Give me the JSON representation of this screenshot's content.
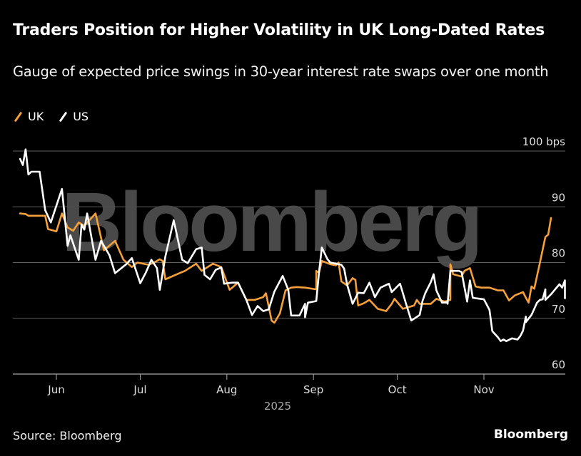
{
  "title": "Traders Position for Higher Volatility in UK Long-Dated Rates",
  "subtitle": "Gauge of expected price swings in 30-year interest rate swaps over one month",
  "source": "Source: Bloomberg",
  "brand": "Bloomberg",
  "watermark": "Bloomberg",
  "colors": {
    "UK": "#f5a03a",
    "US": "#ffffff",
    "grid": "#5f5f5f",
    "background": "#000000"
  },
  "chart_data": {
    "type": "line",
    "title": "Traders Position for Higher Volatility in UK Long-Dated Rates",
    "subtitle": "Gauge of expected price swings in 30-year interest rate swaps over one month",
    "xlabel": "2025",
    "ylabel": "bps",
    "ylim": [
      60,
      100
    ],
    "yticks": [
      60,
      70,
      80,
      90,
      100
    ],
    "ytick_labels": [
      "60",
      "70",
      "80",
      "90",
      "100 bps"
    ],
    "xticks": [
      {
        "label": "Jun",
        "day": 152
      },
      {
        "label": "Jul",
        "day": 182
      },
      {
        "label": "Aug",
        "day": 213
      },
      {
        "label": "Sep",
        "day": 244
      },
      {
        "label": "Oct",
        "day": 274
      },
      {
        "label": "Nov",
        "day": 305
      }
    ],
    "xlim_day": [
      133,
      324
    ],
    "grid": true,
    "y_axis_side": "right",
    "legend_position": "top-left",
    "x_unit": "day of year 2025",
    "series": [
      {
        "name": "UK",
        "color": "#f5a03a",
        "points": [
          [
            139,
            88.8
          ],
          [
            141,
            88.7
          ],
          [
            142,
            88.4
          ],
          [
            144,
            88.4
          ],
          [
            148,
            88.4
          ],
          [
            149,
            86.0
          ],
          [
            152,
            85.6
          ],
          [
            154,
            88.8
          ],
          [
            156,
            86.3
          ],
          [
            158,
            85.7
          ],
          [
            160,
            87.2
          ],
          [
            162,
            86.6
          ],
          [
            166,
            88.8
          ],
          [
            169,
            82.2
          ],
          [
            173,
            83.9
          ],
          [
            176,
            80.5
          ],
          [
            179,
            79.2
          ],
          [
            181,
            80.0
          ],
          [
            185,
            79.6
          ],
          [
            187,
            80.0
          ],
          [
            189,
            80.6
          ],
          [
            190,
            80.3
          ],
          [
            191,
            77.0
          ],
          [
            196,
            78.1
          ],
          [
            198,
            78.5
          ],
          [
            202,
            79.8
          ],
          [
            204,
            78.5
          ],
          [
            208,
            79.8
          ],
          [
            211,
            79.2
          ],
          [
            214,
            75.1
          ],
          [
            217,
            76.4
          ],
          [
            220,
            73.3
          ],
          [
            223,
            73.3
          ],
          [
            226,
            73.8
          ],
          [
            227,
            74.5
          ],
          [
            229,
            69.6
          ],
          [
            230,
            69.2
          ],
          [
            232,
            70.9
          ],
          [
            234,
            75.0
          ],
          [
            236,
            75.5
          ],
          [
            238,
            75.6
          ],
          [
            241,
            75.5
          ],
          [
            245,
            75.2
          ],
          [
            245,
            78.5
          ],
          [
            246,
            78.2
          ],
          [
            247,
            80.3
          ],
          [
            250,
            79.7
          ],
          [
            252,
            79.5
          ],
          [
            253,
            80.0
          ],
          [
            254,
            76.6
          ],
          [
            256,
            75.9
          ],
          [
            258,
            77.2
          ],
          [
            259,
            76.9
          ],
          [
            260,
            72.3
          ],
          [
            262,
            72.7
          ],
          [
            264,
            73.3
          ],
          [
            267,
            71.7
          ],
          [
            270,
            71.3
          ],
          [
            272,
            72.6
          ],
          [
            273,
            73.5
          ],
          [
            276,
            71.7
          ],
          [
            280,
            72.3
          ],
          [
            281,
            73.3
          ],
          [
            282,
            72.6
          ],
          [
            286,
            72.6
          ],
          [
            288,
            73.5
          ],
          [
            289,
            73.3
          ],
          [
            291,
            73.0
          ],
          [
            293,
            73.3
          ],
          [
            293,
            79.7
          ],
          [
            294,
            77.9
          ],
          [
            297,
            77.5
          ],
          [
            298,
            78.5
          ],
          [
            300,
            79.0
          ],
          [
            302,
            75.7
          ],
          [
            304,
            75.5
          ],
          [
            307,
            75.5
          ],
          [
            310,
            75.0
          ],
          [
            312,
            75.0
          ],
          [
            314,
            73.2
          ],
          [
            316,
            74.1
          ],
          [
            319,
            74.7
          ],
          [
            320,
            73.7
          ],
          [
            321,
            72.8
          ],
          [
            322,
            75.7
          ],
          [
            323,
            75.3
          ],
          [
            325,
            79.9
          ],
          [
            327,
            84.6
          ],
          [
            328,
            85.0
          ],
          [
            329,
            88.0
          ]
        ]
      },
      {
        "name": "US",
        "color": "#ffffff",
        "points": [
          [
            139,
            98.6
          ],
          [
            140,
            97.5
          ],
          [
            141,
            100.3
          ],
          [
            142,
            95.8
          ],
          [
            143,
            96.3
          ],
          [
            146,
            96.3
          ],
          [
            148,
            89.4
          ],
          [
            150,
            87.2
          ],
          [
            154,
            93.2
          ],
          [
            156,
            83.0
          ],
          [
            157,
            84.9
          ],
          [
            160,
            80.5
          ],
          [
            161,
            86.8
          ],
          [
            162,
            85.9
          ],
          [
            163,
            88.8
          ],
          [
            166,
            80.5
          ],
          [
            168,
            83.9
          ],
          [
            171,
            81.3
          ],
          [
            173,
            78.1
          ],
          [
            177,
            79.7
          ],
          [
            179,
            80.8
          ],
          [
            182,
            76.3
          ],
          [
            184,
            78.2
          ],
          [
            186,
            80.5
          ],
          [
            188,
            79.0
          ],
          [
            189,
            75.1
          ],
          [
            191,
            81.1
          ],
          [
            194,
            87.6
          ],
          [
            197,
            80.5
          ],
          [
            199,
            79.9
          ],
          [
            202,
            82.4
          ],
          [
            204,
            82.7
          ],
          [
            205,
            77.8
          ],
          [
            207,
            77.0
          ],
          [
            209,
            78.7
          ],
          [
            211,
            79.1
          ],
          [
            212,
            76.2
          ],
          [
            215,
            76.4
          ],
          [
            217,
            76.4
          ],
          [
            220,
            73.3
          ],
          [
            222,
            70.6
          ],
          [
            224,
            72.2
          ],
          [
            226,
            71.3
          ],
          [
            228,
            71.6
          ],
          [
            230,
            74.8
          ],
          [
            233,
            77.6
          ],
          [
            235,
            75.1
          ],
          [
            236,
            70.5
          ],
          [
            239,
            70.5
          ],
          [
            241,
            72.6
          ],
          [
            241,
            70.2
          ],
          [
            242,
            72.8
          ],
          [
            245,
            73.1
          ],
          [
            246,
            78.3
          ],
          [
            247,
            82.7
          ],
          [
            249,
            80.6
          ],
          [
            250,
            80.0
          ],
          [
            254,
            79.6
          ],
          [
            255,
            78.9
          ],
          [
            256,
            76.1
          ],
          [
            258,
            72.6
          ],
          [
            260,
            74.6
          ],
          [
            262,
            74.5
          ],
          [
            264,
            76.4
          ],
          [
            266,
            73.8
          ],
          [
            268,
            75.5
          ],
          [
            271,
            76.2
          ],
          [
            272,
            74.7
          ],
          [
            275,
            76.2
          ],
          [
            277,
            72.8
          ],
          [
            279,
            69.6
          ],
          [
            282,
            70.6
          ],
          [
            283,
            73.1
          ],
          [
            284,
            74.5
          ],
          [
            286,
            76.5
          ],
          [
            287,
            77.9
          ],
          [
            288,
            75.0
          ],
          [
            290,
            72.8
          ],
          [
            292,
            72.9
          ],
          [
            292,
            72.6
          ],
          [
            293,
            78.5
          ],
          [
            296,
            78.5
          ],
          [
            297,
            78.3
          ],
          [
            299,
            73.0
          ],
          [
            300,
            76.8
          ],
          [
            301,
            73.7
          ],
          [
            302,
            73.6
          ],
          [
            305,
            73.4
          ],
          [
            307,
            71.5
          ],
          [
            308,
            67.7
          ],
          [
            310,
            66.6
          ],
          [
            311,
            65.9
          ],
          [
            312,
            66.2
          ],
          [
            313,
            65.9
          ],
          [
            315,
            66.4
          ],
          [
            317,
            66.2
          ],
          [
            318,
            66.8
          ],
          [
            319,
            67.8
          ],
          [
            320,
            70.3
          ],
          [
            320,
            69.3
          ],
          [
            322,
            70.6
          ],
          [
            324,
            72.8
          ],
          [
            325,
            73.3
          ],
          [
            326,
            73.4
          ],
          [
            327,
            75.2
          ],
          [
            327,
            73.3
          ],
          [
            329,
            74.3
          ],
          [
            331,
            75.5
          ],
          [
            332,
            76.1
          ],
          [
            333,
            75.5
          ],
          [
            334,
            76.8
          ],
          [
            334,
            73.6
          ]
        ]
      }
    ]
  }
}
